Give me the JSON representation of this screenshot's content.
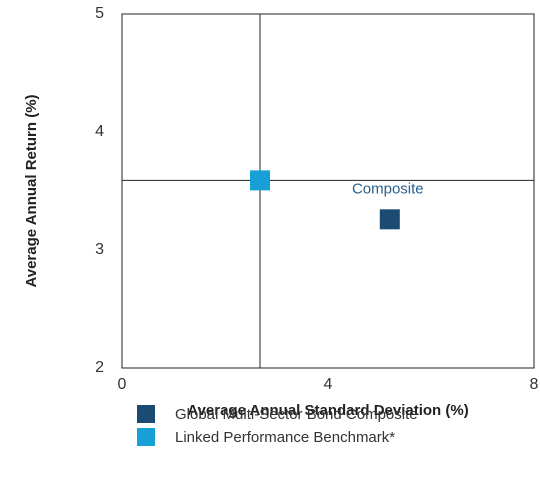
{
  "chart_data": {
    "type": "scatter",
    "xlabel": "Average Annual Standard Deviation (%)",
    "ylabel": "Average Annual Return (%)",
    "xlim": [
      0,
      8
    ],
    "xticks": [
      0,
      4,
      8
    ],
    "ylim": [
      2,
      5
    ],
    "yticks": [
      2,
      3,
      4,
      5
    ],
    "annotation": "Composite",
    "series": [
      {
        "name": "Global Multi-Sector Bond Composite",
        "color": "#1b4a72",
        "x": [
          5.2
        ],
        "values": [
          3.26
        ]
      },
      {
        "name": "Linked Performance Benchmark*",
        "color": "#17a0d8",
        "x": [
          2.68
        ],
        "values": [
          3.59
        ]
      }
    ]
  }
}
